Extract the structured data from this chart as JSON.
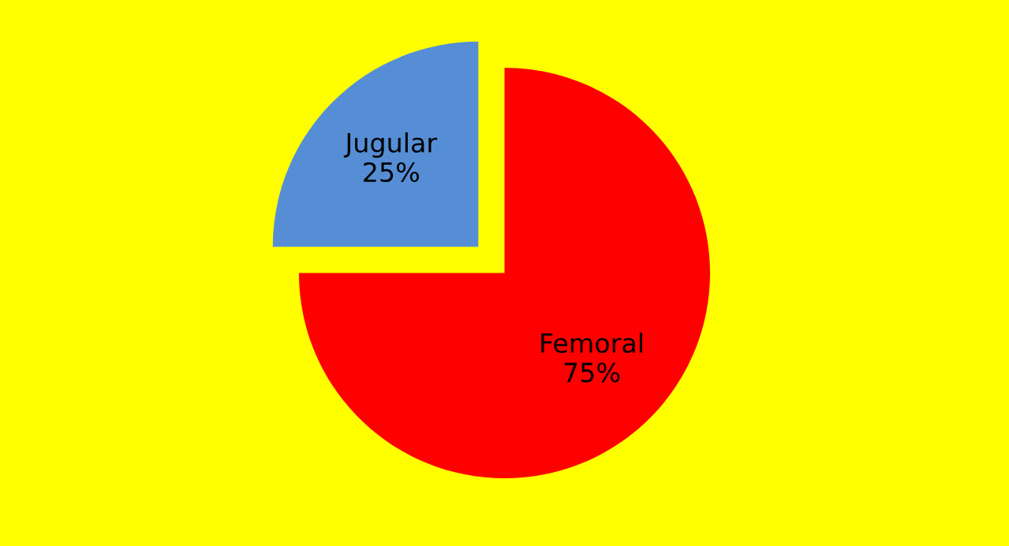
{
  "chart_data": {
    "type": "pie",
    "categories": [
      "Jugular",
      "Femoral"
    ],
    "values": [
      25,
      75
    ],
    "value_labels": [
      "25%",
      "75%"
    ],
    "colors": [
      "#558ed5",
      "#ff0000"
    ]
  }
}
